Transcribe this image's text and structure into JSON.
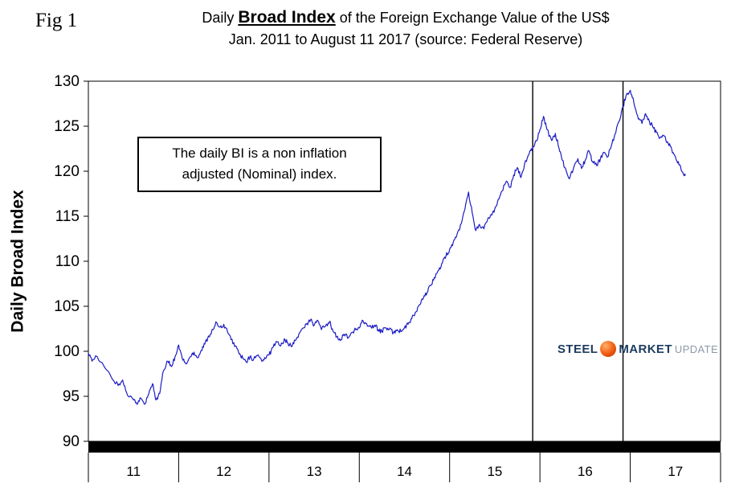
{
  "fig_label": "Fig 1",
  "title": {
    "prefix": "Daily ",
    "emphasis": "Broad Index",
    "suffix": " of the Foreign Exchange Value of the US$",
    "line2": "Jan. 2011 to August 11 2017 (source: Federal Reserve)"
  },
  "annotation": {
    "line1": "The daily BI is a non inflation",
    "line2": "adjusted (Nominal) index."
  },
  "y_axis_label": "Daily Broad Index",
  "logo": {
    "steel": "STEEL",
    "market": "MARKET",
    "update": "UPDATE",
    "ball_color": "#f05a12",
    "navy": "#1d3c5f",
    "gray": "#8d9aa9"
  },
  "chart_data": {
    "type": "line",
    "title": "Daily Broad Index of the Foreign Exchange Value of the US$",
    "subtitle": "Jan. 2011 to August 11 2017 (source: Federal Reserve)",
    "xlabel": "",
    "ylabel": "Daily Broad Index",
    "ylim": [
      90,
      130
    ],
    "xlim": [
      2011.0,
      2018.0
    ],
    "y_ticks": [
      130,
      125,
      120,
      115,
      110,
      105,
      100,
      95,
      90
    ],
    "x_labels": [
      "11",
      "12",
      "13",
      "14",
      "15",
      "16",
      "17"
    ],
    "grid": false,
    "legend": false,
    "line_color": "#1c1cc4",
    "event_line_color": "#000000",
    "baseline_bar_color": "#000000",
    "vertical_lines": [
      2015.92,
      2016.92
    ],
    "annotations": [
      "The daily BI is a non inflation adjusted (Nominal) index."
    ],
    "series": [
      {
        "name": "Daily Broad Index",
        "points": [
          [
            2011.0,
            99.8
          ],
          [
            2011.04,
            98.9
          ],
          [
            2011.08,
            99.5
          ],
          [
            2011.17,
            98.4
          ],
          [
            2011.25,
            97.2
          ],
          [
            2011.33,
            96.2
          ],
          [
            2011.38,
            96.8
          ],
          [
            2011.42,
            95.5
          ],
          [
            2011.5,
            94.6
          ],
          [
            2011.54,
            94.1
          ],
          [
            2011.58,
            94.8
          ],
          [
            2011.63,
            94.2
          ],
          [
            2011.67,
            95.3
          ],
          [
            2011.71,
            96.4
          ],
          [
            2011.75,
            94.6
          ],
          [
            2011.79,
            95.3
          ],
          [
            2011.83,
            97.8
          ],
          [
            2011.88,
            98.9
          ],
          [
            2011.92,
            98.3
          ],
          [
            2011.96,
            99.4
          ],
          [
            2012.0,
            100.7
          ],
          [
            2012.04,
            99.2
          ],
          [
            2012.08,
            98.6
          ],
          [
            2012.13,
            99.4
          ],
          [
            2012.17,
            99.9
          ],
          [
            2012.21,
            99.3
          ],
          [
            2012.25,
            100.1
          ],
          [
            2012.29,
            100.8
          ],
          [
            2012.33,
            101.7
          ],
          [
            2012.38,
            102.4
          ],
          [
            2012.42,
            103.2
          ],
          [
            2012.46,
            102.7
          ],
          [
            2012.5,
            103.0
          ],
          [
            2012.54,
            102.2
          ],
          [
            2012.58,
            101.3
          ],
          [
            2012.63,
            100.6
          ],
          [
            2012.67,
            99.7
          ],
          [
            2012.71,
            99.2
          ],
          [
            2012.75,
            98.8
          ],
          [
            2012.79,
            99.4
          ],
          [
            2012.83,
            99.1
          ],
          [
            2012.88,
            99.6
          ],
          [
            2012.92,
            98.9
          ],
          [
            2012.96,
            99.2
          ],
          [
            2013.0,
            99.6
          ],
          [
            2013.04,
            100.4
          ],
          [
            2013.08,
            101.1
          ],
          [
            2013.13,
            100.6
          ],
          [
            2013.17,
            101.4
          ],
          [
            2013.21,
            100.9
          ],
          [
            2013.25,
            100.5
          ],
          [
            2013.29,
            101.2
          ],
          [
            2013.33,
            101.9
          ],
          [
            2013.38,
            102.6
          ],
          [
            2013.42,
            103.1
          ],
          [
            2013.46,
            103.5
          ],
          [
            2013.5,
            102.9
          ],
          [
            2013.54,
            103.4
          ],
          [
            2013.58,
            102.4
          ],
          [
            2013.63,
            102.9
          ],
          [
            2013.67,
            103.3
          ],
          [
            2013.71,
            102.2
          ],
          [
            2013.75,
            101.6
          ],
          [
            2013.79,
            101.2
          ],
          [
            2013.83,
            101.9
          ],
          [
            2013.88,
            101.5
          ],
          [
            2013.92,
            102.1
          ],
          [
            2013.96,
            102.4
          ],
          [
            2014.0,
            102.6
          ],
          [
            2014.04,
            103.4
          ],
          [
            2014.08,
            103.1
          ],
          [
            2014.13,
            102.7
          ],
          [
            2014.17,
            102.9
          ],
          [
            2014.21,
            102.4
          ],
          [
            2014.25,
            102.2
          ],
          [
            2014.29,
            102.6
          ],
          [
            2014.33,
            102.4
          ],
          [
            2014.38,
            102.1
          ],
          [
            2014.42,
            102.4
          ],
          [
            2014.46,
            102.2
          ],
          [
            2014.5,
            102.6
          ],
          [
            2014.54,
            103.0
          ],
          [
            2014.58,
            103.6
          ],
          [
            2014.63,
            104.4
          ],
          [
            2014.67,
            105.2
          ],
          [
            2014.71,
            105.9
          ],
          [
            2014.75,
            106.5
          ],
          [
            2014.79,
            107.3
          ],
          [
            2014.83,
            108.2
          ],
          [
            2014.88,
            109.0
          ],
          [
            2014.92,
            109.8
          ],
          [
            2014.96,
            110.6
          ],
          [
            2015.0,
            111.3
          ],
          [
            2015.04,
            112.1
          ],
          [
            2015.08,
            112.9
          ],
          [
            2015.13,
            114.2
          ],
          [
            2015.17,
            115.8
          ],
          [
            2015.21,
            117.7
          ],
          [
            2015.25,
            115.4
          ],
          [
            2015.29,
            113.4
          ],
          [
            2015.33,
            114.1
          ],
          [
            2015.38,
            113.6
          ],
          [
            2015.42,
            114.6
          ],
          [
            2015.46,
            115.2
          ],
          [
            2015.5,
            115.8
          ],
          [
            2015.54,
            116.9
          ],
          [
            2015.58,
            117.8
          ],
          [
            2015.63,
            118.9
          ],
          [
            2015.67,
            118.2
          ],
          [
            2015.71,
            119.6
          ],
          [
            2015.75,
            120.4
          ],
          [
            2015.79,
            119.3
          ],
          [
            2015.83,
            120.8
          ],
          [
            2015.88,
            121.9
          ],
          [
            2015.92,
            122.6
          ],
          [
            2015.96,
            123.4
          ],
          [
            2016.0,
            124.6
          ],
          [
            2016.04,
            126.1
          ],
          [
            2016.08,
            124.6
          ],
          [
            2016.13,
            123.4
          ],
          [
            2016.17,
            124.2
          ],
          [
            2016.21,
            122.6
          ],
          [
            2016.25,
            121.2
          ],
          [
            2016.29,
            120.1
          ],
          [
            2016.33,
            119.2
          ],
          [
            2016.38,
            120.6
          ],
          [
            2016.42,
            121.4
          ],
          [
            2016.46,
            120.3
          ],
          [
            2016.5,
            121.2
          ],
          [
            2016.54,
            122.3
          ],
          [
            2016.58,
            121.1
          ],
          [
            2016.63,
            120.6
          ],
          [
            2016.67,
            121.4
          ],
          [
            2016.71,
            122.1
          ],
          [
            2016.75,
            121.6
          ],
          [
            2016.79,
            122.8
          ],
          [
            2016.83,
            124.1
          ],
          [
            2016.88,
            125.6
          ],
          [
            2016.92,
            127.2
          ],
          [
            2016.96,
            128.6
          ],
          [
            2017.0,
            129.0
          ],
          [
            2017.04,
            127.6
          ],
          [
            2017.08,
            126.2
          ],
          [
            2017.13,
            125.3
          ],
          [
            2017.17,
            126.4
          ],
          [
            2017.21,
            125.6
          ],
          [
            2017.25,
            124.9
          ],
          [
            2017.29,
            124.3
          ],
          [
            2017.33,
            123.7
          ],
          [
            2017.38,
            123.9
          ],
          [
            2017.42,
            123.1
          ],
          [
            2017.46,
            122.4
          ],
          [
            2017.5,
            121.6
          ],
          [
            2017.54,
            120.7
          ],
          [
            2017.58,
            119.9
          ],
          [
            2017.61,
            119.5
          ]
        ]
      }
    ]
  }
}
